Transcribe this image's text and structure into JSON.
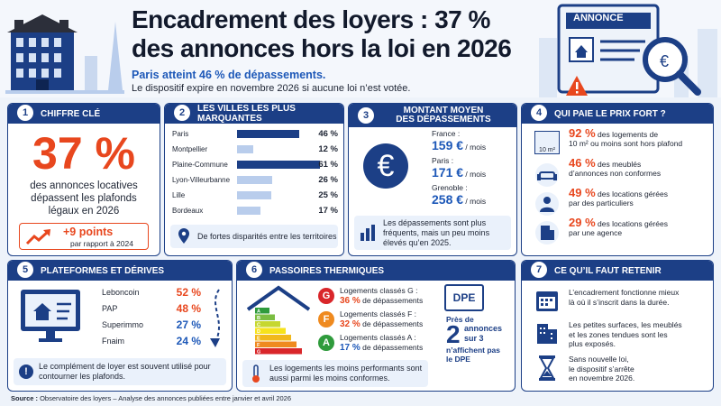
{
  "header": {
    "title_line1": "Encadrement des loyers : 37 %",
    "title_line2": "des annonces hors la loi en 2026",
    "subtitle": "Paris atteint 46 % de dépassements.",
    "subtitle2": "Le dispositif expire en novembre 2026 si aucune loi n’est votée.",
    "annonce_label": "ANNONCE"
  },
  "p1": {
    "num": "1",
    "title": "CHIFFRE CLÉ",
    "big": "37 %",
    "desc": [
      "des annonces locatives",
      "dépassent les plafonds",
      "légaux en 2026"
    ],
    "delta": "+9 points",
    "delta_sub": "par rapport à 2024"
  },
  "p2": {
    "num": "2",
    "title": "LES VILLES LES PLUS MARQUANTES",
    "cities": [
      {
        "name": "Paris",
        "value": 46,
        "label": "46 %"
      },
      {
        "name": "Montpellier",
        "value": 12,
        "label": "12 %"
      },
      {
        "name": "Plaine-Commune",
        "value": 61,
        "label": "61 %"
      },
      {
        "name": "Lyon-Villeurbanne",
        "value": 26,
        "label": "26 %"
      },
      {
        "name": "Lille",
        "value": 25,
        "label": "25 %"
      },
      {
        "name": "Bordeaux",
        "value": 17,
        "label": "17 %"
      }
    ],
    "note": "De fortes disparités entre les territoires"
  },
  "p3": {
    "num": "3",
    "title1": "MONTANT MOYEN",
    "title2": "DES DÉPASSEMENTS",
    "rows": [
      {
        "place": "France :",
        "amount": "159 €",
        "unit": " / mois"
      },
      {
        "place": "Paris :",
        "amount": "171 €",
        "unit": " / mois"
      },
      {
        "place": "Grenoble :",
        "amount": "258 €",
        "unit": " / mois"
      }
    ],
    "note": "Les dépassements sont plus fréquents, mais un peu moins élevés qu’en 2025."
  },
  "p4": {
    "num": "4",
    "title": "QUI PAIE LE PRIX FORT ?",
    "icon_label": "10 m²",
    "rows": [
      {
        "pct": "92 %",
        "text1": " des logements de",
        "text2": "10 m² ou moins sont hors plafond"
      },
      {
        "pct": "46 %",
        "text1": " des meublés",
        "text2": "d’annonces non conformes"
      },
      {
        "pct": "49 %",
        "text1": " des locations gérées",
        "text2": "par des particuliers"
      },
      {
        "pct": "29 %",
        "text1": " des locations gérées",
        "text2": "par une agence"
      }
    ]
  },
  "p5": {
    "num": "5",
    "title": "PLATEFORMES ET DÉRIVES",
    "rows": [
      {
        "name": "Leboncoin",
        "pct": "52 %"
      },
      {
        "name": "PAP",
        "pct": "48 %"
      },
      {
        "name": "Superimmo",
        "pct": "27 %"
      },
      {
        "name": "Fnaim",
        "pct": "24 %"
      }
    ],
    "note": "Le complément de loyer est souvent utilisé pour contourner les plafonds."
  },
  "p6": {
    "num": "6",
    "title": "PASSOIRES THERMIQUES",
    "rows": [
      {
        "letter": "G",
        "color": "#d9262a",
        "line1": "Logements classés G :",
        "pct": "36 %",
        "rest": " de dépassements"
      },
      {
        "letter": "F",
        "color": "#ef8a1f",
        "line1": "Logements classés F :",
        "pct": "32 %",
        "rest": " de dépassements"
      },
      {
        "letter": "A",
        "color": "#2f9b3c",
        "line1": "Logements classés A :",
        "pct": "17 %",
        "rest": " de dépassements"
      }
    ],
    "dpe": "DPE",
    "near": "Près de",
    "two": "2",
    "t1": "annonces",
    "t2": "sur 3",
    "t3": "n’affichent pas",
    "t4": "le DPE",
    "letters": [
      "A",
      "B",
      "C",
      "D",
      "E",
      "F",
      "G"
    ],
    "note": "Les logements les moins performants sont aussi parmi les moins conformes."
  },
  "p7": {
    "num": "7",
    "title": "CE QU’IL FAUT RETENIR",
    "items": [
      [
        "L’encadrement fonctionne mieux",
        "là où il s’inscrit dans la durée."
      ],
      [
        "Les petites surfaces, les meublés",
        "et les zones tendues sont les",
        "plus exposés."
      ],
      [
        "Sans nouvelle loi,",
        "le dispositif s’arrête",
        "en novembre 2026."
      ]
    ]
  },
  "footer": {
    "label": "Source :",
    "text": " Observatoire des loyers – Analyse des annonces publiées entre janvier et avril 2026"
  }
}
